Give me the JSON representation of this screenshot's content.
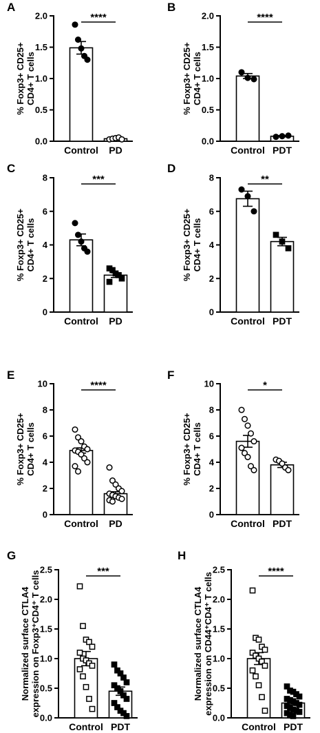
{
  "chart_data": [
    {
      "panel": "A",
      "type": "bar",
      "ylabel": [
        "% Foxp3+ CD25+",
        "CD4+ T cells"
      ],
      "categories": [
        "Control",
        "PD"
      ],
      "values": [
        1.49,
        0.04
      ],
      "errors": [
        0.1,
        0.01
      ],
      "points": [
        [
          1.86,
          1.62,
          1.48,
          1.36,
          1.3
        ],
        [
          0.03,
          0.04,
          0.05,
          0.06,
          0.03
        ]
      ],
      "markers": [
        "filled-circle",
        "open-circle"
      ],
      "ylim": [
        0,
        2.0
      ],
      "yticks": [
        "0.0",
        "0.5",
        "1.0",
        "1.5",
        "2.0"
      ],
      "significance": "****"
    },
    {
      "panel": "B",
      "type": "bar",
      "ylabel": [
        "% Foxp3+ CD25+",
        "CD4+ T cells"
      ],
      "categories": [
        "Control",
        "PDT"
      ],
      "values": [
        1.04,
        0.08
      ],
      "errors": [
        0.04,
        0.01
      ],
      "points": [
        [
          1.1,
          1.01,
          0.99
        ],
        [
          0.07,
          0.08,
          0.09
        ]
      ],
      "markers": [
        "filled-circle",
        "filled-circle"
      ],
      "ylim": [
        0,
        2.0
      ],
      "yticks": [
        "0.0",
        "0.5",
        "1.0",
        "1.5",
        "2.0"
      ],
      "significance": "****"
    },
    {
      "panel": "C",
      "type": "bar",
      "ylabel": [
        "% Foxp3+ CD25+",
        "CD4+ T cells"
      ],
      "categories": [
        "Control",
        "PD"
      ],
      "values": [
        4.3,
        2.2
      ],
      "errors": [
        0.35,
        0.14
      ],
      "points": [
        [
          5.3,
          4.6,
          4.2,
          3.8,
          3.6
        ],
        [
          2.6,
          2.5,
          2.3,
          2.2,
          2.0,
          1.8
        ]
      ],
      "markers": [
        "filled-circle",
        "filled-square"
      ],
      "ylim": [
        0,
        8
      ],
      "yticks": [
        "0",
        "2",
        "4",
        "6",
        "8"
      ],
      "significance": "***"
    },
    {
      "panel": "D",
      "type": "bar",
      "ylabel": [
        "% Foxp3+ CD25+",
        "CD4+ T cells"
      ],
      "categories": [
        "Control",
        "PDT"
      ],
      "values": [
        6.75,
        4.2
      ],
      "errors": [
        0.45,
        0.25
      ],
      "points": [
        [
          7.3,
          6.9,
          6.0
        ],
        [
          4.6,
          4.2,
          3.8
        ]
      ],
      "markers": [
        "filled-circle",
        "filled-square"
      ],
      "ylim": [
        0,
        8
      ],
      "yticks": [
        "0",
        "2",
        "4",
        "6",
        "8"
      ],
      "significance": "**"
    },
    {
      "panel": "E",
      "type": "bar",
      "ylabel": [
        "% Foxp3+ CD25+",
        "CD4+ T cells"
      ],
      "categories": [
        "Control",
        "PD"
      ],
      "values": [
        4.9,
        1.6
      ],
      "errors": [
        0.2,
        0.15
      ],
      "points": [
        [
          6.5,
          5.9,
          5.6,
          5.2,
          5.0,
          4.9,
          4.8,
          4.6,
          4.3,
          4.0,
          3.7,
          3.3
        ],
        [
          3.6,
          2.6,
          2.3,
          2.0,
          1.8,
          1.6,
          1.5,
          1.4,
          1.3,
          1.2,
          1.1,
          1.0
        ]
      ],
      "markers": [
        "open-circle",
        "open-circle"
      ],
      "ylim": [
        0,
        10
      ],
      "yticks": [
        "0",
        "2",
        "4",
        "6",
        "8",
        "10"
      ],
      "significance": "****"
    },
    {
      "panel": "F",
      "type": "bar",
      "ylabel": [
        "% Foxp3+ CD25+",
        "CD4+ T cells"
      ],
      "categories": [
        "Control",
        "PDT"
      ],
      "values": [
        5.6,
        3.8
      ],
      "errors": [
        0.45,
        0.2
      ],
      "points": [
        [
          8.0,
          7.3,
          6.8,
          6.2,
          5.6,
          5.1,
          4.7,
          4.4,
          3.7,
          3.4
        ],
        [
          4.2,
          4.1,
          3.9,
          3.6,
          3.4
        ]
      ],
      "markers": [
        "open-circle",
        "open-circle"
      ],
      "ylim": [
        0,
        10
      ],
      "yticks": [
        "0",
        "2",
        "4",
        "6",
        "8",
        "10"
      ],
      "significance": "*"
    },
    {
      "panel": "G",
      "type": "bar",
      "ylabel": [
        "Normalized surface CTLA4",
        "expression on Foxp3⁺CD4⁺ T cells"
      ],
      "categories": [
        "Control",
        "PDT"
      ],
      "values": [
        1.0,
        0.45
      ],
      "errors": [
        0.12,
        0.07
      ],
      "points": [
        [
          2.22,
          1.55,
          1.32,
          1.28,
          1.2,
          1.1,
          1.0,
          0.97,
          0.92,
          0.88,
          0.82,
          0.7,
          0.52,
          0.32,
          0.15
        ],
        [
          0.9,
          0.8,
          0.75,
          0.68,
          0.6,
          0.55,
          0.5,
          0.45,
          0.38,
          0.32,
          0.25,
          0.18,
          0.12,
          0.08,
          0.03
        ]
      ],
      "markers": [
        "open-square",
        "filled-square"
      ],
      "ylim": [
        0,
        2.5
      ],
      "yticks": [
        "0.0",
        "0.5",
        "1.0",
        "1.5",
        "2.0",
        "2.5"
      ],
      "significance": "***"
    },
    {
      "panel": "H",
      "type": "bar",
      "ylabel": [
        "Normalized surface CTLA4",
        "expression on CD44⁺CD4⁺ T cells"
      ],
      "categories": [
        "Control",
        "PDT"
      ],
      "values": [
        1.0,
        0.25
      ],
      "errors": [
        0.1,
        0.03
      ],
      "points": [
        [
          2.15,
          1.35,
          1.32,
          1.2,
          1.15,
          1.1,
          1.05,
          1.0,
          0.95,
          0.88,
          0.8,
          0.7,
          0.55,
          0.35,
          0.12
        ],
        [
          0.53,
          0.46,
          0.44,
          0.4,
          0.36,
          0.32,
          0.3,
          0.28,
          0.25,
          0.22,
          0.2,
          0.17,
          0.14,
          0.12,
          0.1,
          0.08,
          0.05,
          0.03
        ]
      ],
      "markers": [
        "open-square",
        "filled-square"
      ],
      "ylim": [
        0,
        2.5
      ],
      "yticks": [
        "0.0",
        "0.5",
        "1.0",
        "1.5",
        "2.0",
        "2.5"
      ],
      "significance": "****"
    }
  ]
}
